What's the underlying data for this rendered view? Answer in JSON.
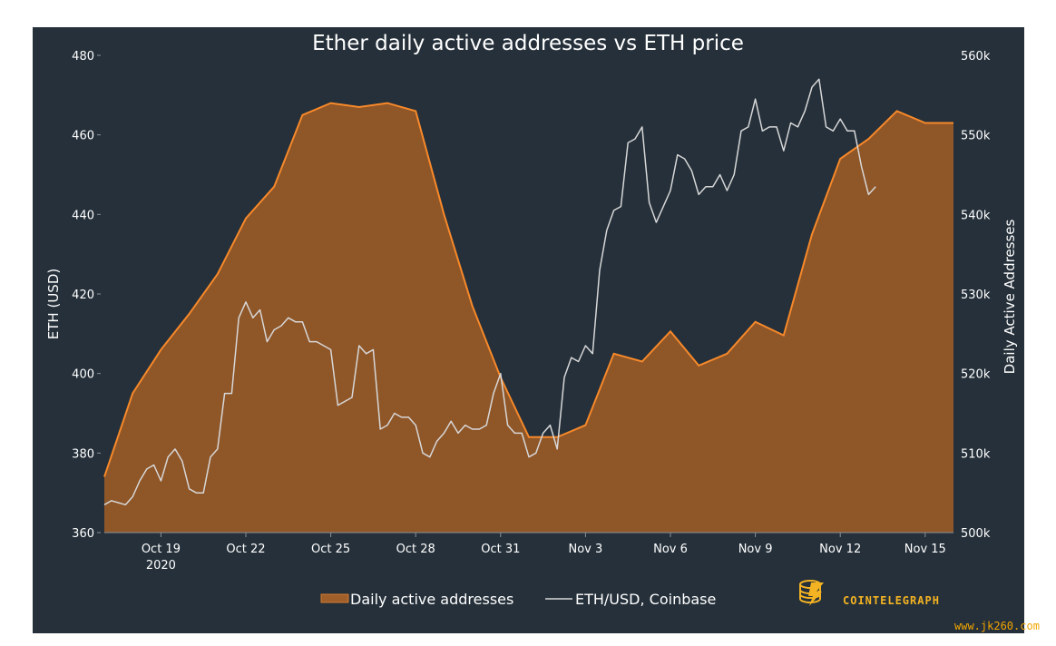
{
  "chart_data": {
    "type": "area",
    "title": "Ether daily active addresses vs ETH price",
    "ylabel": "ETH (USD)",
    "y2label": "Daily Active Addresses",
    "xlim": [
      "2020-10-17",
      "2020-11-16"
    ],
    "ylim": [
      360,
      480
    ],
    "y2lim": [
      500000,
      560000
    ],
    "x_ticks": [
      "Oct 19",
      "Oct 22",
      "Oct 25",
      "Oct 28",
      "Oct 31",
      "Nov 3",
      "Nov 6",
      "Nov 9",
      "Nov 12",
      "Nov 15"
    ],
    "x_tick_sublabel": "2020",
    "y_ticks": [
      "360",
      "380",
      "400",
      "420",
      "440",
      "460",
      "480"
    ],
    "y2_ticks": [
      "500k",
      "510k",
      "520k",
      "530k",
      "540k",
      "550k",
      "560k"
    ],
    "grid": false,
    "legend_position": "bottom",
    "series": [
      {
        "name": "Daily active addresses",
        "type": "area",
        "axis": "right",
        "x": [
          "2020-10-17",
          "2020-10-18",
          "2020-10-19",
          "2020-10-20",
          "2020-10-21",
          "2020-10-22",
          "2020-10-23",
          "2020-10-24",
          "2020-10-25",
          "2020-10-26",
          "2020-10-27",
          "2020-10-28",
          "2020-10-29",
          "2020-10-30",
          "2020-10-31",
          "2020-11-01",
          "2020-11-02",
          "2020-11-03",
          "2020-11-04",
          "2020-11-05",
          "2020-11-06",
          "2020-11-07",
          "2020-11-08",
          "2020-11-09",
          "2020-11-10",
          "2020-11-11",
          "2020-11-12",
          "2020-11-13",
          "2020-11-14",
          "2020-11-15",
          "2020-11-16"
        ],
        "values": [
          507000,
          517500,
          523000,
          527500,
          532500,
          539500,
          543500,
          552500,
          554000,
          553500,
          554000,
          553000,
          540000,
          528500,
          519500,
          512000,
          512000,
          513500,
          522500,
          521500,
          525300,
          521000,
          522500,
          526500,
          524800,
          537500,
          547000,
          549500,
          553000,
          551500,
          551500
        ]
      },
      {
        "name": "ETH/USD, Coinbase",
        "type": "line",
        "axis": "left",
        "x_start": "2020-10-17",
        "step_days": 0.25,
        "values": [
          367,
          368,
          367.5,
          367,
          369,
          373,
          376,
          377,
          373,
          379,
          381,
          378,
          371,
          370,
          370,
          379,
          381,
          395,
          395,
          414,
          418,
          414,
          416,
          408,
          411,
          412,
          414,
          413,
          413,
          408,
          408,
          407,
          406,
          392,
          393,
          394,
          407,
          405,
          406,
          386,
          387,
          390,
          389,
          389,
          387,
          380,
          379,
          383,
          385,
          388,
          385,
          387,
          386,
          386,
          387,
          395,
          400,
          387,
          385,
          385,
          379,
          380,
          385,
          387,
          381,
          399,
          404,
          403,
          407,
          405,
          426,
          436,
          441,
          442,
          458,
          459,
          462,
          443,
          438,
          442,
          446,
          455,
          454,
          451,
          445,
          447,
          447,
          450,
          446,
          450,
          461,
          462,
          469,
          461,
          462,
          462,
          456,
          463,
          462,
          466,
          472,
          474,
          462,
          461,
          464,
          461,
          461,
          452,
          445,
          447
        ]
      }
    ],
    "colors": {
      "background": "#25303a",
      "area_fill": "#8f5628",
      "area_line": "#f7892a",
      "price_line": "#d7d7d7",
      "brand": "#f4b322"
    },
    "watermark": "www.jk260.com",
    "brand": "COINTELEGRAPH"
  }
}
